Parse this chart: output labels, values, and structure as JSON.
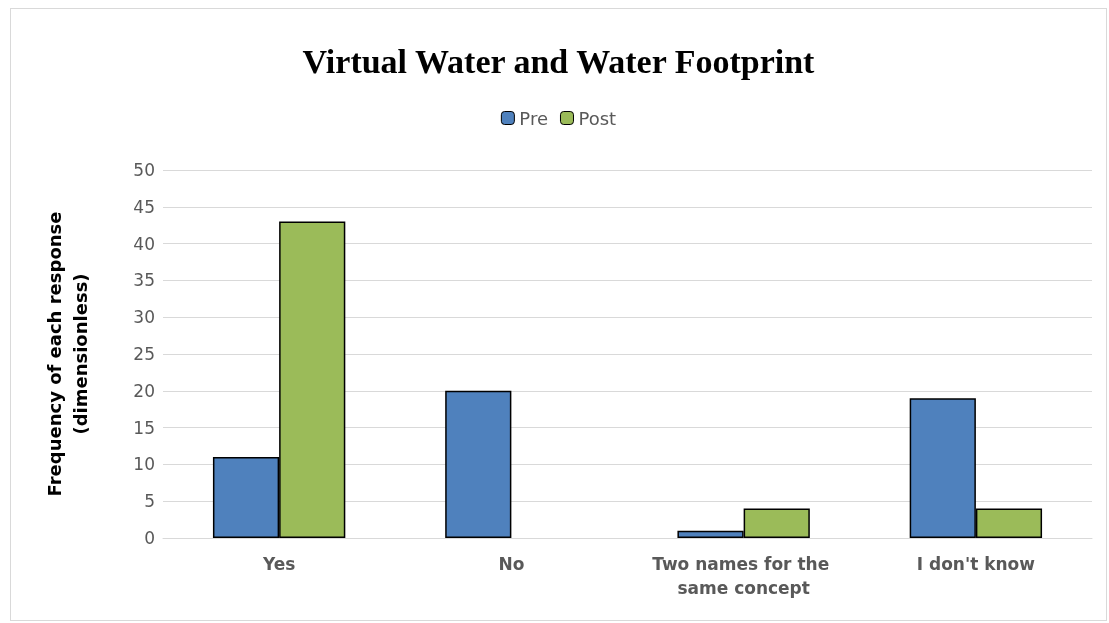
{
  "chart_data": {
    "type": "bar",
    "title": "Virtual Water and Water Footprint",
    "ylabel": "Frequency of each response\n(dimensionless)",
    "categories": [
      "Yes",
      "No",
      "Two names for the same concept",
      "I don't know"
    ],
    "series": [
      {
        "name": "Pre",
        "color": "#4f81bd",
        "values": [
          11,
          20,
          1,
          19
        ]
      },
      {
        "name": "Post",
        "color": "#9bbb59",
        "values": [
          43,
          0,
          4,
          4
        ]
      }
    ],
    "ylim": [
      0,
      50
    ],
    "yticks": [
      0,
      5,
      10,
      15,
      20,
      25,
      30,
      35,
      40,
      45,
      50
    ],
    "grid": "y",
    "legend": "top"
  }
}
